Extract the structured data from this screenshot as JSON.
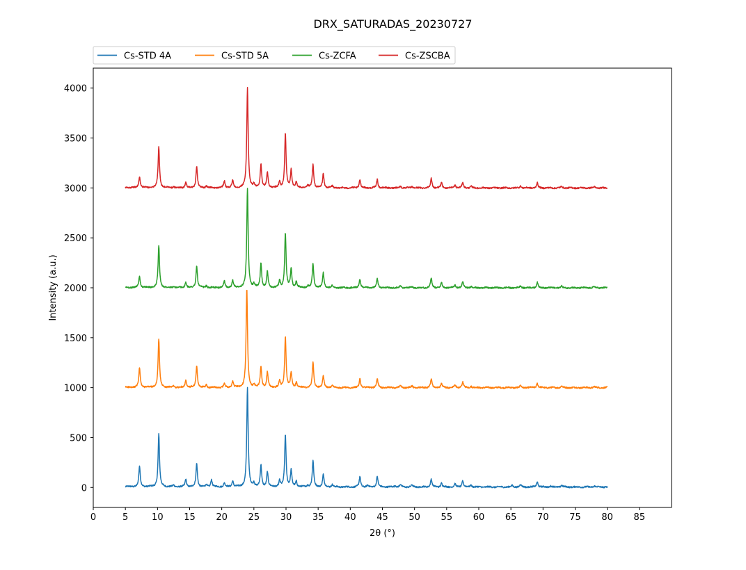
{
  "chart_data": {
    "type": "line",
    "title": "DRX_SATURADAS_20230727",
    "xlabel": "2θ (°)",
    "ylabel": "Intensity (a.u.)",
    "xlim": [
      0,
      90
    ],
    "ylim": [
      -200,
      4200
    ],
    "x_ticks": [
      "0",
      "5",
      "10",
      "15",
      "20",
      "25",
      "30",
      "35",
      "40",
      "45",
      "50",
      "55",
      "60",
      "65",
      "70",
      "75",
      "80",
      "85"
    ],
    "y_ticks": [
      "0",
      "500",
      "1000",
      "1500",
      "2000",
      "2500",
      "3000",
      "3500",
      "4000"
    ],
    "grid": false,
    "legend_position": "top-left, above plot",
    "x_range": [
      5,
      80
    ],
    "peaks_description": "Each series is an XRD pattern: baseline + sharp peaks at listed 2θ positions with listed heights (a.u.) above baseline.",
    "series": [
      {
        "name": "Cs-STD 4A",
        "color": "#1f77b4",
        "baseline": 5,
        "peaks": [
          [
            7.2,
            205
          ],
          [
            10.2,
            530
          ],
          [
            12.5,
            15
          ],
          [
            14.4,
            75
          ],
          [
            16.1,
            235
          ],
          [
            17.6,
            20
          ],
          [
            18.4,
            75
          ],
          [
            20.4,
            40
          ],
          [
            21.7,
            60
          ],
          [
            24.0,
            995
          ],
          [
            25.0,
            40
          ],
          [
            26.1,
            215
          ],
          [
            27.1,
            150
          ],
          [
            29.0,
            60
          ],
          [
            29.9,
            525
          ],
          [
            30.8,
            165
          ],
          [
            31.6,
            55
          ],
          [
            33.4,
            15
          ],
          [
            34.2,
            265
          ],
          [
            35.8,
            125
          ],
          [
            37.2,
            25
          ],
          [
            41.5,
            105
          ],
          [
            42.7,
            15
          ],
          [
            44.2,
            105
          ],
          [
            47.0,
            15
          ],
          [
            47.8,
            25
          ],
          [
            49.6,
            20
          ],
          [
            52.6,
            80
          ],
          [
            54.2,
            40
          ],
          [
            56.3,
            30
          ],
          [
            57.5,
            65
          ],
          [
            58.8,
            20
          ],
          [
            65.2,
            15
          ],
          [
            66.5,
            25
          ],
          [
            69.1,
            55
          ],
          [
            71.2,
            10
          ],
          [
            72.9,
            20
          ],
          [
            78.0,
            10
          ]
        ]
      },
      {
        "name": "Cs-STD 5A",
        "color": "#ff7f0e",
        "baseline": 1000,
        "peaks": [
          [
            7.2,
            195
          ],
          [
            10.2,
            485
          ],
          [
            12.5,
            15
          ],
          [
            14.4,
            70
          ],
          [
            16.1,
            215
          ],
          [
            17.6,
            25
          ],
          [
            20.4,
            35
          ],
          [
            21.7,
            65
          ],
          [
            23.9,
            995
          ],
          [
            25.0,
            30
          ],
          [
            26.1,
            210
          ],
          [
            27.1,
            155
          ],
          [
            29.0,
            60
          ],
          [
            29.9,
            515
          ],
          [
            30.8,
            150
          ],
          [
            31.6,
            50
          ],
          [
            34.2,
            255
          ],
          [
            35.8,
            120
          ],
          [
            37.2,
            20
          ],
          [
            41.5,
            90
          ],
          [
            44.2,
            90
          ],
          [
            47.8,
            20
          ],
          [
            49.6,
            15
          ],
          [
            52.6,
            85
          ],
          [
            54.2,
            40
          ],
          [
            56.3,
            25
          ],
          [
            57.5,
            55
          ],
          [
            58.8,
            15
          ],
          [
            66.5,
            20
          ],
          [
            69.1,
            45
          ],
          [
            72.9,
            15
          ],
          [
            78.0,
            10
          ]
        ]
      },
      {
        "name": "Cs-ZCFA",
        "color": "#2ca02c",
        "baseline": 2000,
        "peaks": [
          [
            7.2,
            115
          ],
          [
            10.2,
            420
          ],
          [
            12.5,
            10
          ],
          [
            14.4,
            55
          ],
          [
            16.1,
            220
          ],
          [
            17.6,
            20
          ],
          [
            20.4,
            70
          ],
          [
            21.7,
            70
          ],
          [
            24.0,
            995
          ],
          [
            25.0,
            30
          ],
          [
            26.1,
            245
          ],
          [
            27.1,
            160
          ],
          [
            29.0,
            65
          ],
          [
            29.9,
            545
          ],
          [
            30.8,
            185
          ],
          [
            31.6,
            60
          ],
          [
            33.4,
            20
          ],
          [
            34.2,
            240
          ],
          [
            35.8,
            150
          ],
          [
            37.2,
            20
          ],
          [
            41.5,
            90
          ],
          [
            44.2,
            90
          ],
          [
            47.8,
            20
          ],
          [
            49.6,
            15
          ],
          [
            52.6,
            95
          ],
          [
            54.2,
            50
          ],
          [
            56.3,
            30
          ],
          [
            57.5,
            60
          ],
          [
            58.8,
            15
          ],
          [
            66.5,
            20
          ],
          [
            69.1,
            55
          ],
          [
            72.9,
            15
          ],
          [
            78.0,
            10
          ]
        ]
      },
      {
        "name": "Cs-ZSCBA",
        "color": "#d62728",
        "baseline": 3000,
        "peaks": [
          [
            7.2,
            115
          ],
          [
            10.2,
            415
          ],
          [
            12.5,
            10
          ],
          [
            14.4,
            55
          ],
          [
            16.1,
            215
          ],
          [
            17.6,
            20
          ],
          [
            20.4,
            70
          ],
          [
            21.7,
            75
          ],
          [
            24.0,
            1000
          ],
          [
            25.0,
            30
          ],
          [
            26.1,
            235
          ],
          [
            27.1,
            155
          ],
          [
            29.0,
            60
          ],
          [
            29.9,
            545
          ],
          [
            30.8,
            180
          ],
          [
            31.6,
            55
          ],
          [
            33.4,
            20
          ],
          [
            34.2,
            235
          ],
          [
            35.8,
            145
          ],
          [
            37.2,
            20
          ],
          [
            41.5,
            85
          ],
          [
            44.2,
            85
          ],
          [
            47.8,
            20
          ],
          [
            49.6,
            15
          ],
          [
            52.6,
            95
          ],
          [
            54.2,
            50
          ],
          [
            56.3,
            30
          ],
          [
            57.5,
            55
          ],
          [
            58.8,
            15
          ],
          [
            66.5,
            20
          ],
          [
            69.1,
            50
          ],
          [
            72.9,
            15
          ],
          [
            78.0,
            10
          ]
        ]
      }
    ]
  }
}
